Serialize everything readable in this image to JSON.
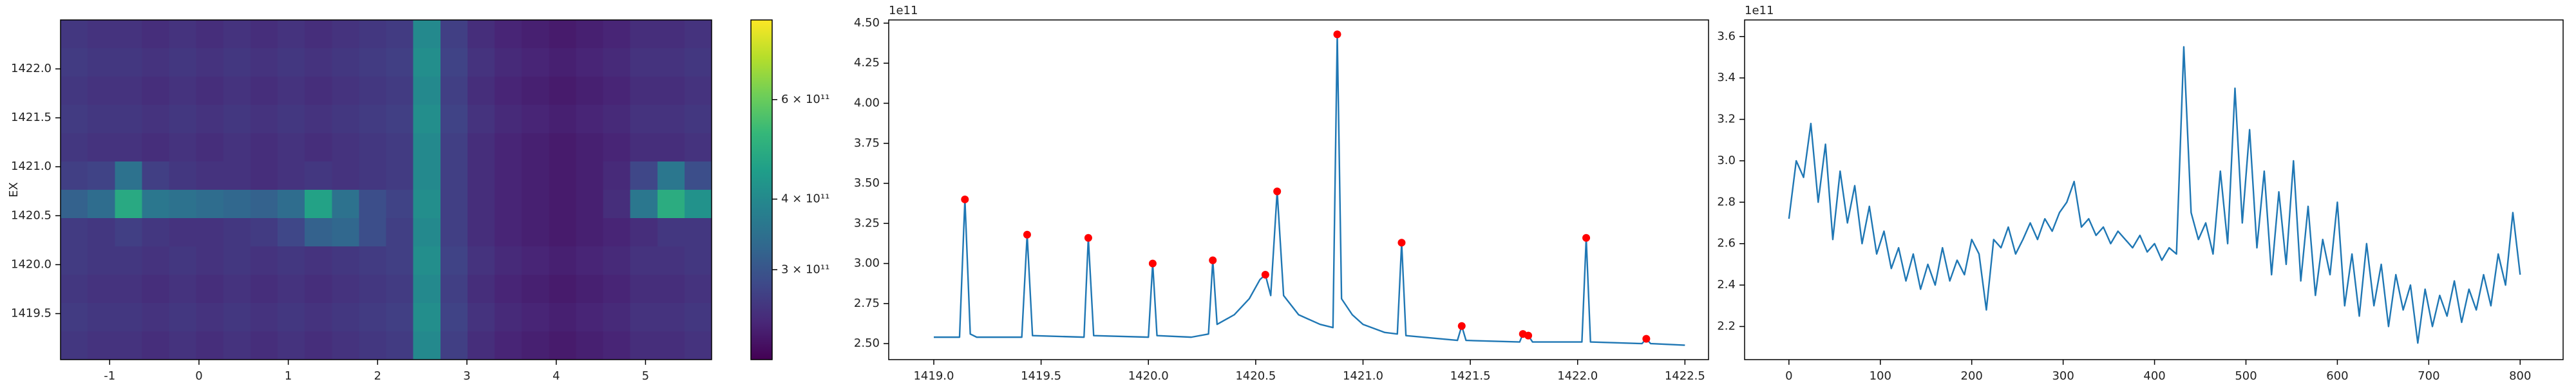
{
  "chart_data": [
    {
      "type": "heatmap",
      "ylabel": "EX",
      "colormap": "viridis",
      "xlim": [
        -1.55,
        5.74
      ],
      "ylim": [
        1419.03,
        1422.5
      ],
      "xticks": [
        -1,
        0,
        1,
        2,
        3,
        4,
        5
      ],
      "yticks": [
        1419.5,
        {
          "value": 1420.0,
          "label": "1420.0"
        },
        1420.5,
        {
          "value": 1421.0,
          "label": "1421.0"
        },
        1421.5,
        {
          "value": 1422.0,
          "label": "1422.0"
        }
      ],
      "colorbar": {
        "scale": "log",
        "lim": [
          208000000000.0,
          830000000000.0
        ],
        "ticks": [
          {
            "value": 300000000000.0,
            "label": "3 × 10¹¹"
          },
          {
            "value": 400000000000.0,
            "label": "4 × 10¹¹"
          },
          {
            "value": 600000000000.0,
            "label": "6 × 10¹¹"
          }
        ]
      },
      "z": [
        [
          260000000000.0,
          255000000000.0,
          255000000000.0,
          250000000000.0,
          255000000000.0,
          250000000000.0,
          255000000000.0,
          250000000000.0,
          255000000000.0,
          250000000000.0,
          255000000000.0,
          260000000000.0,
          265000000000.0,
          400000000000.0,
          270000000000.0,
          250000000000.0,
          240000000000.0,
          235000000000.0,
          230000000000.0,
          235000000000.0,
          240000000000.0,
          250000000000.0,
          250000000000.0,
          255000000000.0
        ],
        [
          265000000000.0,
          260000000000.0,
          260000000000.0,
          255000000000.0,
          260000000000.0,
          255000000000.0,
          260000000000.0,
          255000000000.0,
          260000000000.0,
          255000000000.0,
          260000000000.0,
          265000000000.0,
          270000000000.0,
          410000000000.0,
          275000000000.0,
          255000000000.0,
          245000000000.0,
          240000000000.0,
          235000000000.0,
          240000000000.0,
          245000000000.0,
          255000000000.0,
          255000000000.0,
          260000000000.0
        ],
        [
          260000000000.0,
          255000000000.0,
          255000000000.0,
          250000000000.0,
          255000000000.0,
          250000000000.0,
          255000000000.0,
          250000000000.0,
          255000000000.0,
          250000000000.0,
          255000000000.0,
          260000000000.0,
          265000000000.0,
          400000000000.0,
          270000000000.0,
          250000000000.0,
          240000000000.0,
          235000000000.0,
          230000000000.0,
          235000000000.0,
          240000000000.0,
          250000000000.0,
          250000000000.0,
          255000000000.0
        ],
        [
          265000000000.0,
          260000000000.0,
          260000000000.0,
          255000000000.0,
          260000000000.0,
          255000000000.0,
          260000000000.0,
          255000000000.0,
          260000000000.0,
          255000000000.0,
          260000000000.0,
          265000000000.0,
          270000000000.0,
          410000000000.0,
          275000000000.0,
          255000000000.0,
          245000000000.0,
          240000000000.0,
          235000000000.0,
          240000000000.0,
          245000000000.0,
          255000000000.0,
          255000000000.0,
          260000000000.0
        ],
        [
          260000000000.0,
          255000000000.0,
          255000000000.0,
          250000000000.0,
          255000000000.0,
          250000000000.0,
          255000000000.0,
          250000000000.0,
          255000000000.0,
          250000000000.0,
          255000000000.0,
          260000000000.0,
          265000000000.0,
          400000000000.0,
          270000000000.0,
          250000000000.0,
          240000000000.0,
          235000000000.0,
          230000000000.0,
          235000000000.0,
          240000000000.0,
          250000000000.0,
          250000000000.0,
          255000000000.0
        ],
        [
          270000000000.0,
          275000000000.0,
          350000000000.0,
          270000000000.0,
          260000000000.0,
          255000000000.0,
          255000000000.0,
          250000000000.0,
          255000000000.0,
          260000000000.0,
          255000000000.0,
          260000000000.0,
          265000000000.0,
          400000000000.0,
          270000000000.0,
          250000000000.0,
          240000000000.0,
          235000000000.0,
          230000000000.0,
          235000000000.0,
          245000000000.0,
          280000000000.0,
          360000000000.0,
          290000000000.0
        ],
        [
          320000000000.0,
          340000000000.0,
          480000000000.0,
          360000000000.0,
          350000000000.0,
          340000000000.0,
          330000000000.0,
          320000000000.0,
          340000000000.0,
          460000000000.0,
          350000000000.0,
          290000000000.0,
          275000000000.0,
          410000000000.0,
          270000000000.0,
          250000000000.0,
          240000000000.0,
          235000000000.0,
          230000000000.0,
          235000000000.0,
          250000000000.0,
          360000000000.0,
          490000000000.0,
          420000000000.0
        ],
        [
          265000000000.0,
          260000000000.0,
          270000000000.0,
          260000000000.0,
          255000000000.0,
          255000000000.0,
          260000000000.0,
          265000000000.0,
          280000000000.0,
          320000000000.0,
          330000000000.0,
          290000000000.0,
          270000000000.0,
          400000000000.0,
          270000000000.0,
          250000000000.0,
          240000000000.0,
          235000000000.0,
          230000000000.0,
          235000000000.0,
          240000000000.0,
          250000000000.0,
          260000000000.0,
          260000000000.0
        ],
        [
          265000000000.0,
          260000000000.0,
          260000000000.0,
          255000000000.0,
          260000000000.0,
          255000000000.0,
          260000000000.0,
          255000000000.0,
          260000000000.0,
          255000000000.0,
          260000000000.0,
          265000000000.0,
          270000000000.0,
          410000000000.0,
          275000000000.0,
          255000000000.0,
          245000000000.0,
          240000000000.0,
          235000000000.0,
          240000000000.0,
          245000000000.0,
          255000000000.0,
          255000000000.0,
          260000000000.0
        ],
        [
          260000000000.0,
          255000000000.0,
          255000000000.0,
          250000000000.0,
          255000000000.0,
          250000000000.0,
          255000000000.0,
          250000000000.0,
          255000000000.0,
          250000000000.0,
          255000000000.0,
          260000000000.0,
          265000000000.0,
          400000000000.0,
          270000000000.0,
          250000000000.0,
          240000000000.0,
          235000000000.0,
          230000000000.0,
          235000000000.0,
          240000000000.0,
          250000000000.0,
          250000000000.0,
          255000000000.0
        ],
        [
          265000000000.0,
          260000000000.0,
          260000000000.0,
          255000000000.0,
          260000000000.0,
          255000000000.0,
          260000000000.0,
          255000000000.0,
          260000000000.0,
          255000000000.0,
          260000000000.0,
          265000000000.0,
          270000000000.0,
          410000000000.0,
          275000000000.0,
          255000000000.0,
          245000000000.0,
          240000000000.0,
          235000000000.0,
          240000000000.0,
          245000000000.0,
          255000000000.0,
          255000000000.0,
          260000000000.0
        ],
        [
          260000000000.0,
          255000000000.0,
          255000000000.0,
          250000000000.0,
          255000000000.0,
          250000000000.0,
          255000000000.0,
          250000000000.0,
          255000000000.0,
          250000000000.0,
          255000000000.0,
          260000000000.0,
          265000000000.0,
          400000000000.0,
          270000000000.0,
          250000000000.0,
          240000000000.0,
          235000000000.0,
          230000000000.0,
          235000000000.0,
          240000000000.0,
          250000000000.0,
          250000000000.0,
          255000000000.0
        ]
      ]
    },
    {
      "type": "line",
      "offset_text": "1e11",
      "xlim": [
        1418.79,
        1422.61
      ],
      "ylim": [
        2.4,
        4.52
      ],
      "xticks": [
        {
          "value": 1419.0,
          "label": "1419.0"
        },
        1419.5,
        {
          "value": 1420.0,
          "label": "1420.0"
        },
        1420.5,
        {
          "value": 1421.0,
          "label": "1421.0"
        },
        1421.5,
        {
          "value": 1422.0,
          "label": "1422.0"
        },
        1422.5
      ],
      "yticks": [
        {
          "value": 2.5,
          "label": "2.50"
        },
        2.75,
        {
          "value": 3.0,
          "label": "3.00"
        },
        3.25,
        {
          "value": 3.5,
          "label": "3.50"
        },
        3.75,
        {
          "value": 4.0,
          "label": "4.00"
        },
        4.25,
        {
          "value": 4.5,
          "label": "4.50"
        }
      ],
      "series": [
        {
          "type": "line",
          "color": "#1f77b4",
          "x": [
            1419.0,
            1419.12,
            1419.145,
            1419.17,
            1419.2,
            1419.41,
            1419.435,
            1419.46,
            1419.7,
            1419.72,
            1419.745,
            1420.0,
            1420.02,
            1420.04,
            1420.2,
            1420.28,
            1420.3,
            1420.32,
            1420.4,
            1420.47,
            1420.52,
            1420.545,
            1420.57,
            1420.6,
            1420.63,
            1420.7,
            1420.8,
            1420.86,
            1420.88,
            1420.9,
            1420.95,
            1421.0,
            1421.1,
            1421.16,
            1421.18,
            1421.2,
            1421.44,
            1421.46,
            1421.48,
            1421.73,
            1421.745,
            1421.77,
            1421.79,
            1422.02,
            1422.04,
            1422.06,
            1422.3,
            1422.32,
            1422.34,
            1422.5
          ],
          "values": [
            2.54,
            2.54,
            3.4,
            2.56,
            2.54,
            2.54,
            3.18,
            2.55,
            2.54,
            3.16,
            2.55,
            2.54,
            3.0,
            2.55,
            2.54,
            2.56,
            3.02,
            2.62,
            2.68,
            2.78,
            2.9,
            2.93,
            2.8,
            3.45,
            2.8,
            2.68,
            2.62,
            2.6,
            4.43,
            2.78,
            2.68,
            2.62,
            2.57,
            2.56,
            3.13,
            2.55,
            2.52,
            2.61,
            2.52,
            2.51,
            2.56,
            2.55,
            2.51,
            2.51,
            3.16,
            2.51,
            2.5,
            2.53,
            2.5,
            2.49
          ]
        },
        {
          "type": "scatter",
          "color": "#ff0000",
          "x": [
            1419.145,
            1419.435,
            1419.72,
            1420.02,
            1420.3,
            1420.545,
            1420.6,
            1420.88,
            1421.18,
            1421.46,
            1421.745,
            1421.77,
            1422.04,
            1422.32
          ],
          "values": [
            3.4,
            3.18,
            3.16,
            3.0,
            3.02,
            2.93,
            3.45,
            4.43,
            3.13,
            2.61,
            2.56,
            2.55,
            3.16,
            2.53
          ]
        }
      ]
    },
    {
      "type": "line",
      "offset_text": "1e11",
      "xlim": [
        -48.5,
        847
      ],
      "ylim": [
        2.04,
        3.68
      ],
      "xticks": [
        0,
        100,
        200,
        300,
        400,
        500,
        600,
        700,
        800
      ],
      "yticks": [
        2.2,
        2.4,
        2.6,
        2.8,
        {
          "value": 3.0,
          "label": "3.0"
        },
        3.2,
        3.4,
        3.6
      ],
      "series": [
        {
          "type": "line",
          "color": "#1f77b4",
          "x": [
            0,
            8,
            16,
            24,
            32,
            40,
            48,
            56,
            64,
            72,
            80,
            88,
            96,
            104,
            112,
            120,
            128,
            136,
            144,
            152,
            160,
            168,
            176,
            184,
            192,
            200,
            208,
            216,
            224,
            232,
            240,
            248,
            256,
            264,
            272,
            280,
            288,
            296,
            304,
            312,
            320,
            328,
            336,
            344,
            352,
            360,
            368,
            376,
            384,
            392,
            400,
            408,
            416,
            424,
            432,
            440,
            448,
            456,
            464,
            472,
            480,
            488,
            496,
            504,
            512,
            520,
            528,
            536,
            544,
            552,
            560,
            568,
            576,
            584,
            592,
            600,
            608,
            616,
            624,
            632,
            640,
            648,
            656,
            664,
            672,
            680,
            688,
            696,
            704,
            712,
            720,
            728,
            736,
            744,
            752,
            760,
            768,
            776,
            784,
            792,
            800
          ],
          "values": [
            2.72,
            3.0,
            2.92,
            3.18,
            2.8,
            3.08,
            2.62,
            2.95,
            2.7,
            2.88,
            2.6,
            2.78,
            2.55,
            2.66,
            2.48,
            2.58,
            2.42,
            2.55,
            2.38,
            2.5,
            2.4,
            2.58,
            2.42,
            2.52,
            2.45,
            2.62,
            2.55,
            2.28,
            2.62,
            2.58,
            2.68,
            2.55,
            2.62,
            2.7,
            2.62,
            2.72,
            2.66,
            2.75,
            2.8,
            2.9,
            2.68,
            2.72,
            2.64,
            2.68,
            2.6,
            2.66,
            2.62,
            2.58,
            2.64,
            2.56,
            2.6,
            2.52,
            2.58,
            2.55,
            3.55,
            2.75,
            2.62,
            2.7,
            2.55,
            2.95,
            2.6,
            3.35,
            2.7,
            3.15,
            2.58,
            2.95,
            2.45,
            2.85,
            2.5,
            3.0,
            2.42,
            2.78,
            2.35,
            2.62,
            2.45,
            2.8,
            2.3,
            2.55,
            2.25,
            2.6,
            2.3,
            2.5,
            2.2,
            2.45,
            2.28,
            2.4,
            2.12,
            2.38,
            2.2,
            2.35,
            2.25,
            2.42,
            2.22,
            2.38,
            2.28,
            2.45,
            2.3,
            2.55,
            2.4,
            2.75,
            2.45
          ]
        }
      ]
    }
  ]
}
